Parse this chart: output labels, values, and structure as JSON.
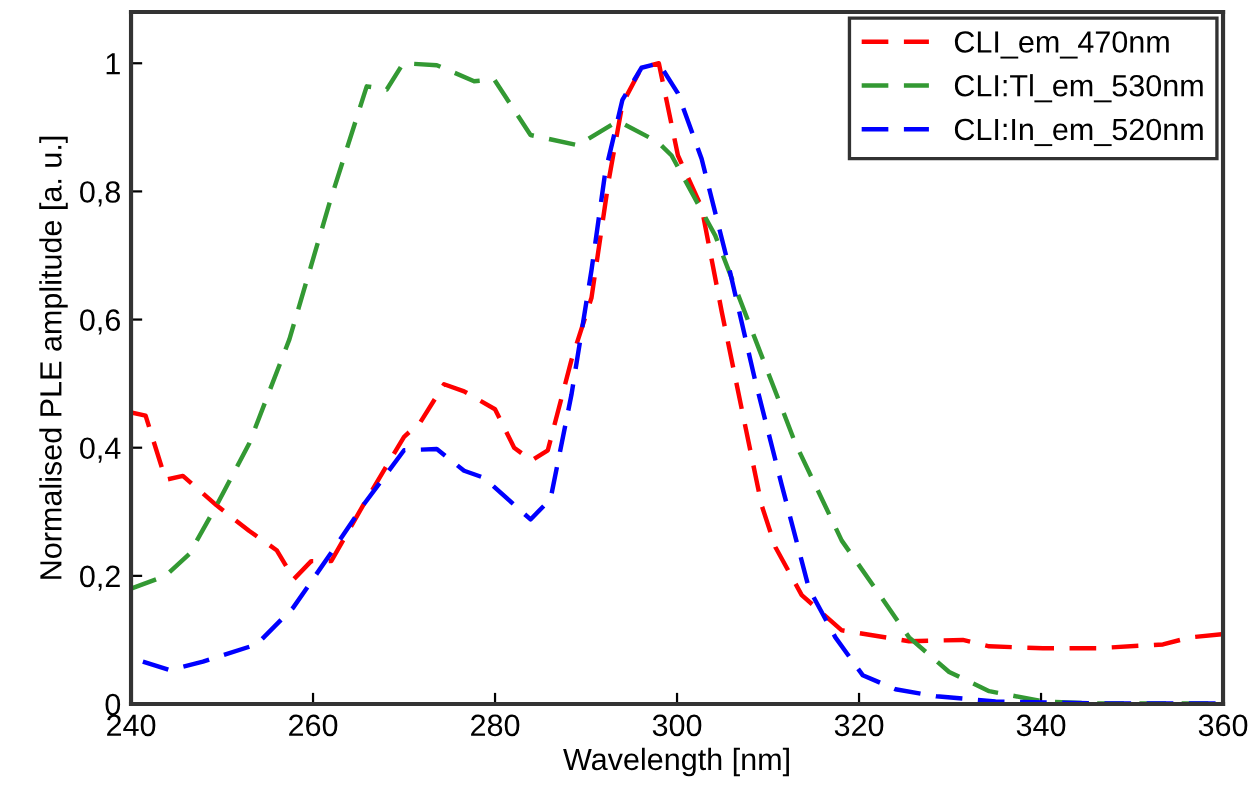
{
  "chart_data": {
    "type": "line",
    "xlabel": "Wavelength [nm]",
    "ylabel": "Normalised PLE amplitude [a. u.]",
    "xlim": [
      240,
      360
    ],
    "xticks": [
      240,
      260,
      280,
      300,
      320,
      340,
      360
    ],
    "ylim": [
      0,
      1.08
    ],
    "yticks": [
      0,
      {
        "value": 0.2,
        "label": "0,2"
      },
      {
        "value": 0.4,
        "label": "0,4"
      },
      {
        "value": 0.6,
        "label": "0,6"
      },
      {
        "value": 0.8,
        "label": "0,8"
      },
      1
    ],
    "grid": false,
    "legend": "top right",
    "line_style": "dashed",
    "marker": "none",
    "series": [
      {
        "name": "CLI_em_470nm",
        "color": "#ff0000",
        "x": [
          240,
          241.6,
          243.8,
          245.7,
          249.4,
          253,
          256,
          257.9,
          259.8,
          262,
          265.5,
          270,
          271.8,
          274.4,
          276.6,
          280,
          282.1,
          284,
          285.8,
          288.4,
          290.6,
          292.5,
          294,
          296.1,
          298,
          300.1,
          302.7,
          304.9,
          307.1,
          309.3,
          310.8,
          313.7,
          318.1,
          325.5,
          331.4,
          334.3,
          340.2,
          346.1,
          353.4,
          356.4,
          360
        ],
        "values": [
          0.455,
          0.45,
          0.35,
          0.356,
          0.31,
          0.27,
          0.24,
          0.195,
          0.223,
          0.223,
          0.31,
          0.417,
          0.44,
          0.499,
          0.488,
          0.46,
          0.4,
          0.38,
          0.396,
          0.537,
          0.634,
          0.818,
          0.937,
          0.993,
          1.0,
          0.856,
          0.775,
          0.613,
          0.461,
          0.31,
          0.245,
          0.17,
          0.115,
          0.098,
          0.1,
          0.09,
          0.087,
          0.087,
          0.093,
          0.104,
          0.109
        ]
      },
      {
        "name": "CLI:Tl_em_530nm",
        "color": "#339933",
        "x": [
          240,
          243.8,
          246.4,
          249.4,
          253,
          257.4,
          261.9,
          265.9,
          268.1,
          269.9,
          273.6,
          277.7,
          279.9,
          283.9,
          289.1,
          293.5,
          297.9,
          299.4,
          304.2,
          308.6,
          313,
          318.1,
          321.8,
          325.5,
          329.9,
          334.3,
          340.2,
          346,
          360
        ],
        "values": [
          0.18,
          0.2,
          0.234,
          0.31,
          0.407,
          0.569,
          0.786,
          0.964,
          0.959,
          1.0,
          0.997,
          0.972,
          0.975,
          0.888,
          0.872,
          0.91,
          0.877,
          0.856,
          0.731,
          0.569,
          0.407,
          0.255,
          0.18,
          0.104,
          0.05,
          0.02,
          0.004,
          0.001,
          0.001
        ]
      },
      {
        "name": "CLI:In_em_520nm",
        "color": "#0000ff",
        "x": [
          241.3,
          244.2,
          247.9,
          253.8,
          257.8,
          261.9,
          265.5,
          270,
          273.6,
          276.6,
          278.8,
          283.9,
          286.1,
          288.4,
          290.6,
          292.1,
          294,
          296.1,
          298,
          300.1,
          302.7,
          305.6,
          308.6,
          311.5,
          314.5,
          317.4,
          320.4,
          324,
          328.5,
          335,
          346,
          360
        ],
        "values": [
          0.066,
          0.053,
          0.066,
          0.093,
          0.15,
          0.234,
          0.31,
          0.396,
          0.398,
          0.364,
          0.353,
          0.288,
          0.32,
          0.483,
          0.677,
          0.829,
          0.943,
          0.993,
          1.0,
          0.953,
          0.851,
          0.688,
          0.504,
          0.342,
          0.18,
          0.104,
          0.045,
          0.023,
          0.012,
          0.004,
          0.001,
          0.001
        ]
      }
    ]
  }
}
